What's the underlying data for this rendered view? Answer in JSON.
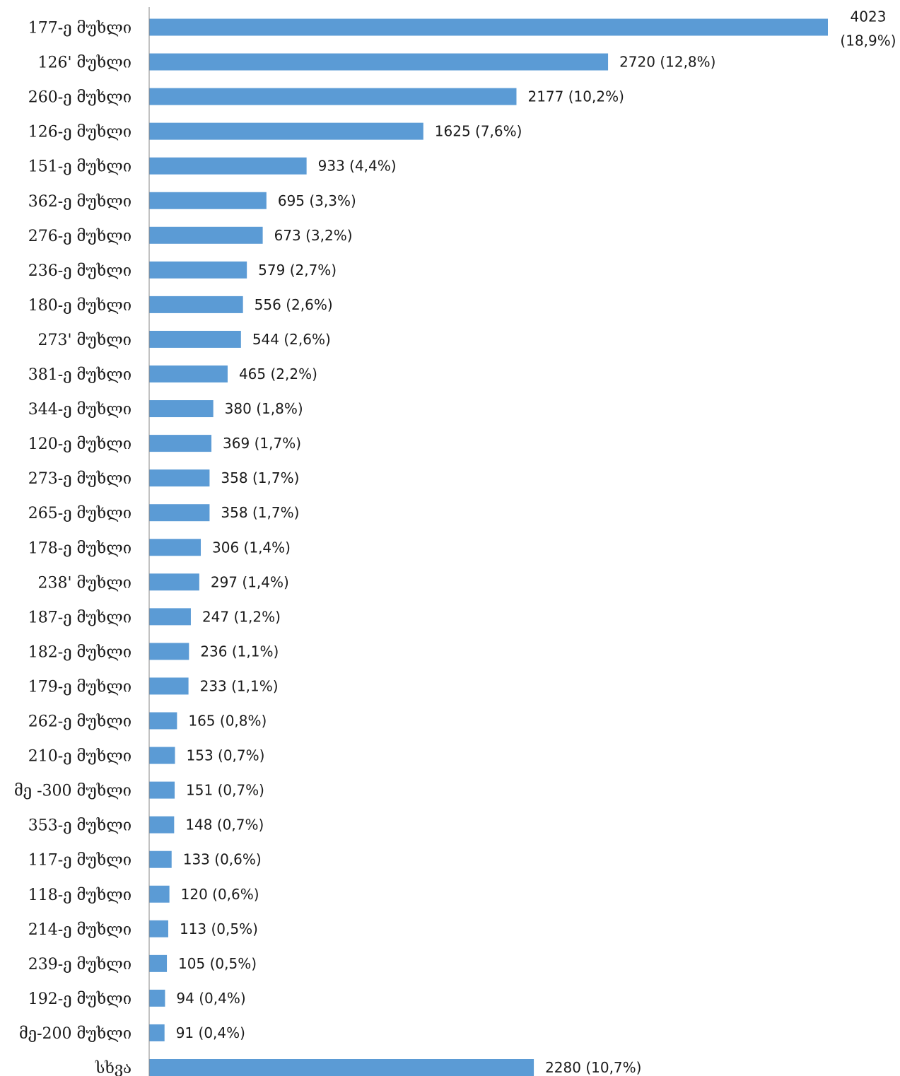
{
  "chart_data": {
    "type": "bar",
    "orientation": "horizontal",
    "bar_color": "#5b9bd5",
    "title": "",
    "xlabel": "",
    "ylabel": "",
    "grid": false,
    "legend": "none",
    "categories": [
      "177-ე მუხლი",
      "126' მუხლი",
      "260-ე მუხლი",
      "126-ე მუხლი",
      "151-ე მუხლი",
      "362-ე მუხლი",
      "276-ე მუხლი",
      "236-ე მუხლი",
      "180-ე მუხლი",
      "273' მუხლი",
      "381-ე მუხლი",
      "344-ე მუხლი",
      "120-ე მუხლი",
      "273-ე მუხლი",
      "265-ე მუხლი",
      "178-ე მუხლი",
      "238' მუხლი",
      "187-ე მუხლი",
      "182-ე მუხლი",
      "179-ე მუხლი",
      "262-ე მუხლი",
      "210-ე მუხლი",
      "მე -300 მუხლი",
      "353-ე მუხლი",
      "117-ე მუხლი",
      "118-ე მუხლი",
      "214-ე მუხლი",
      "239-ე მუხლი",
      "192-ე მუხლი",
      "მე-200 მუხლი",
      "სხვა"
    ],
    "values": [
      4023,
      2720,
      2177,
      1625,
      933,
      695,
      673,
      579,
      556,
      544,
      465,
      380,
      369,
      358,
      358,
      306,
      297,
      247,
      236,
      233,
      165,
      153,
      151,
      148,
      133,
      120,
      113,
      105,
      94,
      91,
      2280
    ],
    "data_labels": [
      "4023 (18,9%)",
      "2720 (12,8%)",
      "2177 (10,2%)",
      "1625 (7,6%)",
      "933 (4,4%)",
      "695 (3,3%)",
      "673 (3,2%)",
      "579 (2,7%)",
      "556 (2,6%)",
      "544 (2,6%)",
      "465 (2,2%)",
      "380 (1,8%)",
      "369 (1,7%)",
      "358 (1,7%)",
      "358 (1,7%)",
      "306 (1,4%)",
      "297 (1,4%)",
      "247 (1,2%)",
      "236 (1,1%)",
      "233 (1,1%)",
      "165 (0,8%)",
      "153 (0,7%)",
      "151 (0,7%)",
      "148 (0,7%)",
      "133 (0,6%)",
      "120 (0,6%)",
      "113 (0,5%)",
      "105 (0,5%)",
      "94 (0,4%)",
      "91 (0,4%)",
      "2280 (10,7%)"
    ]
  }
}
